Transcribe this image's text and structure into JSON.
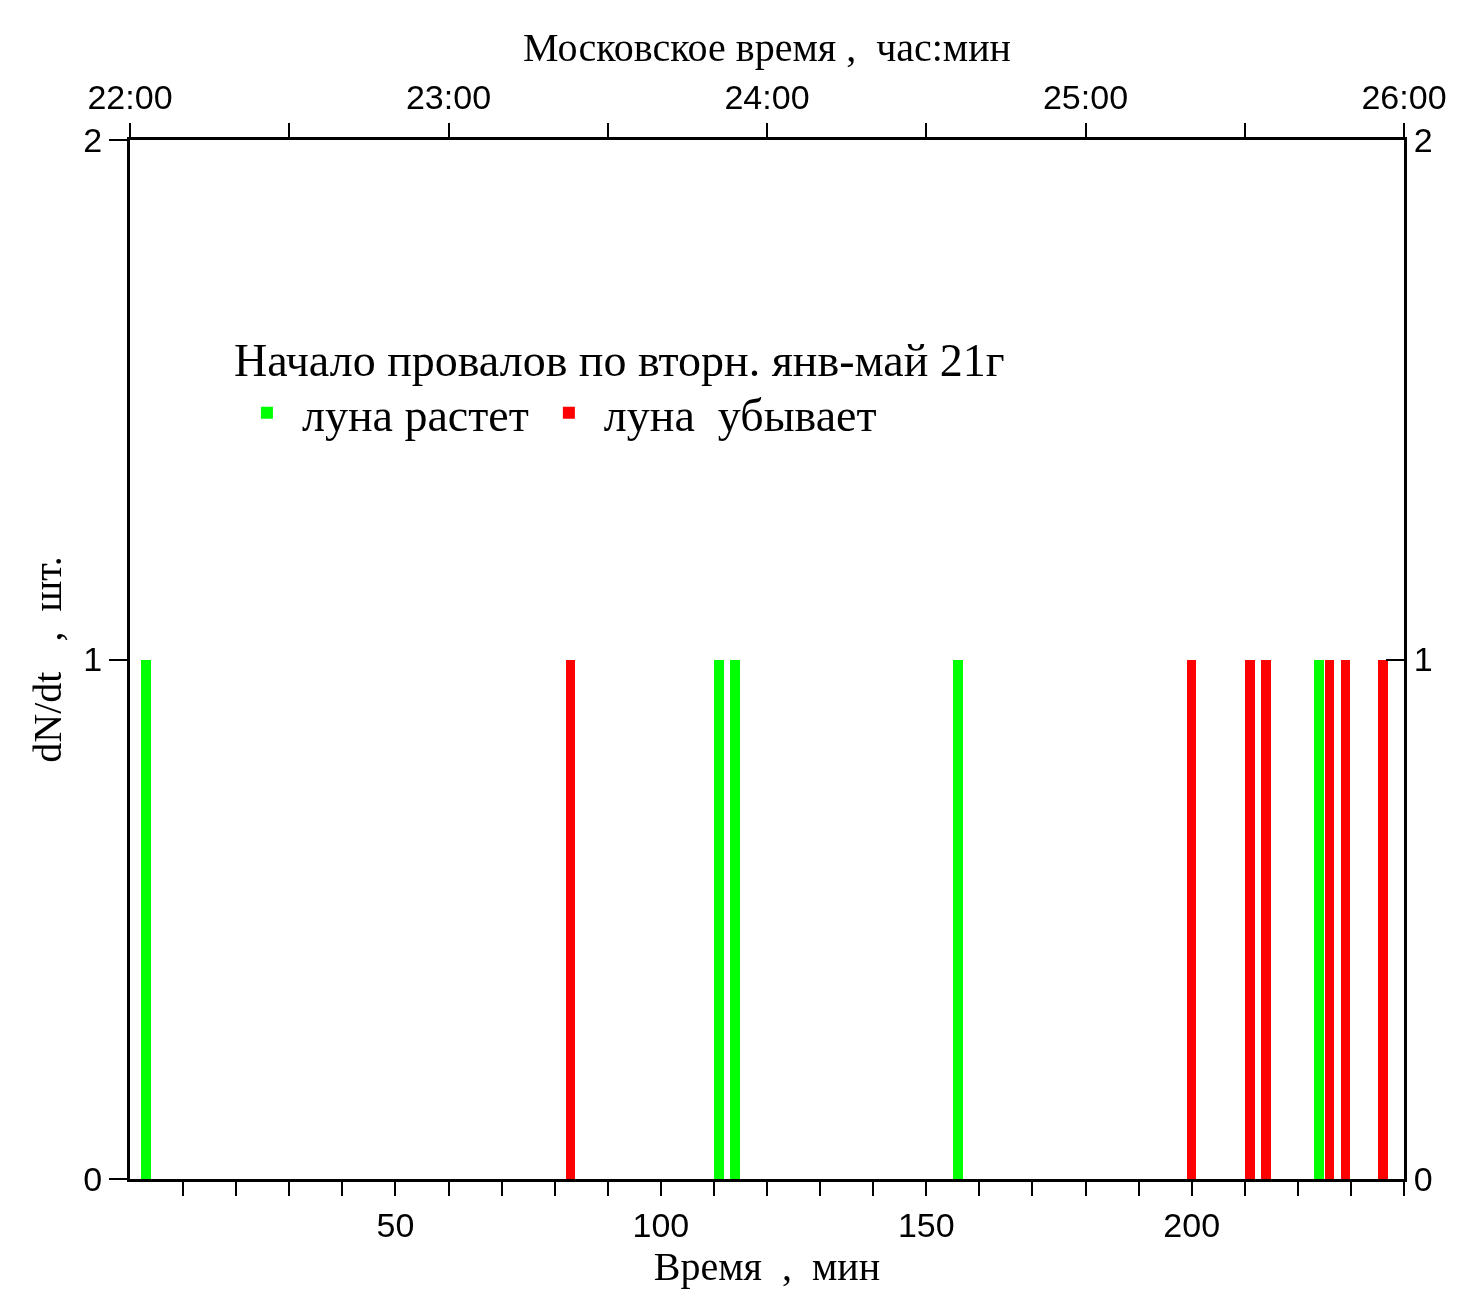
{
  "chart_data": {
    "type": "bar",
    "xlabel": "Время  ,  мин",
    "ylabel": "dN/dt   ,  шт.",
    "x2label": "Московское время ,  час:мин",
    "legend_title": "Начало провалов по вторн. янв-май 21г",
    "legend": "top",
    "series": [
      {
        "name": "луна растет",
        "color": "#00ff00",
        "x": [
          3,
          111,
          114,
          156,
          224
        ],
        "values": [
          1,
          1,
          1,
          1,
          1
        ]
      },
      {
        "name": "луна  убывает",
        "color": "#ff0000",
        "x": [
          83,
          200,
          211,
          214,
          226,
          229,
          236
        ],
        "values": [
          1,
          1,
          1,
          1,
          1,
          1,
          1
        ]
      }
    ],
    "xlim": [
      0,
      240
    ],
    "xticks": [
      {
        "value": 10,
        "label": null
      },
      {
        "value": 20,
        "label": null
      },
      {
        "value": 30,
        "label": null
      },
      {
        "value": 40,
        "label": null
      },
      50,
      {
        "value": 60,
        "label": null
      },
      {
        "value": 70,
        "label": null
      },
      {
        "value": 80,
        "label": null
      },
      {
        "value": 90,
        "label": null
      },
      100,
      {
        "value": 110,
        "label": null
      },
      {
        "value": 120,
        "label": null
      },
      {
        "value": 130,
        "label": null
      },
      {
        "value": 140,
        "label": null
      },
      150,
      {
        "value": 160,
        "label": null
      },
      {
        "value": 170,
        "label": null
      },
      {
        "value": 180,
        "label": null
      },
      {
        "value": 190,
        "label": null
      },
      200,
      {
        "value": 210,
        "label": null
      },
      {
        "value": 220,
        "label": null
      },
      {
        "value": 230,
        "label": null
      },
      {
        "value": 240,
        "label": null
      }
    ],
    "x2lim": [
      22,
      26
    ],
    "x2ticks": [
      {
        "value": 22,
        "label": "22:00"
      },
      {
        "value": 22.5,
        "label": null
      },
      {
        "value": 23,
        "label": "23:00"
      },
      {
        "value": 23.5,
        "label": null
      },
      {
        "value": 24,
        "label": "24:00"
      },
      {
        "value": 24.5,
        "label": null
      },
      {
        "value": 25,
        "label": "25:00"
      },
      {
        "value": 25.5,
        "label": null
      },
      {
        "value": 26,
        "label": "26:00"
      }
    ],
    "ylim": [
      0,
      2
    ],
    "yticks": [
      0,
      1,
      2
    ],
    "y2lim": [
      0,
      2
    ],
    "y2ticks": [
      0,
      1,
      2
    ]
  }
}
